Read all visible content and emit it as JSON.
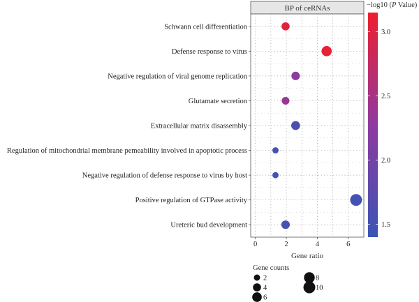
{
  "chart_data": {
    "type": "scatter",
    "title": "BP of ceRNAs",
    "xlabel": "Gene ratio",
    "xlim": [
      -0.3,
      7.0
    ],
    "xticks": [
      0,
      2,
      4,
      6
    ],
    "grid": true,
    "categories": [
      "Schwann cell differentiation",
      "Defense response to virus",
      "Negative regulation of viral genome replication",
      "Glutamate secretion",
      "Extracellular matrix disassembly",
      "Regulation of mitochondrial membrane pemeability involved in apoptotic process",
      "Negative regulation of defense response to virus by host",
      "Positive regulation of GTPase activity",
      "Ureteric bud development"
    ],
    "points": [
      {
        "category": "Schwann cell differentiation",
        "x": 1.95,
        "count": 4,
        "neglog10p": 3.05
      },
      {
        "category": "Defense response to virus",
        "x": 4.6,
        "count": 7,
        "neglog10p": 3.1
      },
      {
        "category": "Negative regulation of viral genome replication",
        "x": 2.6,
        "count": 4.5,
        "neglog10p": 2.25
      },
      {
        "category": "Glutamate secretion",
        "x": 1.95,
        "count": 3.5,
        "neglog10p": 2.35
      },
      {
        "category": "Extracellular matrix disassembly",
        "x": 2.6,
        "count": 5,
        "neglog10p": 1.6
      },
      {
        "category": "Regulation of mitochondrial membrane pemeability involved in apoptotic process",
        "x": 1.3,
        "count": 2,
        "neglog10p": 1.5
      },
      {
        "category": "Negative regulation of defense response to virus by host",
        "x": 1.3,
        "count": 2,
        "neglog10p": 1.5
      },
      {
        "category": "Positive regulation of GTPase activity",
        "x": 6.5,
        "count": 10,
        "neglog10p": 1.5
      },
      {
        "category": "Ureteric bud development",
        "x": 1.95,
        "count": 4.5,
        "neglog10p": 1.55
      }
    ],
    "color_scale": {
      "title": "−log10 (",
      "title_italic": "P",
      "title_end": " Value)",
      "min": 1.4,
      "max": 3.15,
      "ticks": [
        1.5,
        2.0,
        2.5,
        3.0
      ],
      "tick_labels": [
        "1.5",
        "2.0",
        "2.5",
        "3.0"
      ],
      "low_color": "#3a55b4",
      "mid_color": "#8f3aa0",
      "high_color": "#ed1f2e"
    },
    "size_legend": {
      "title": "Gene counts",
      "entries": [
        {
          "label": "2",
          "count": 2
        },
        {
          "label": "4",
          "count": 4
        },
        {
          "label": "6",
          "count": 6
        },
        {
          "label": "8",
          "count": 8
        },
        {
          "label": "10",
          "count": 10
        }
      ]
    }
  }
}
